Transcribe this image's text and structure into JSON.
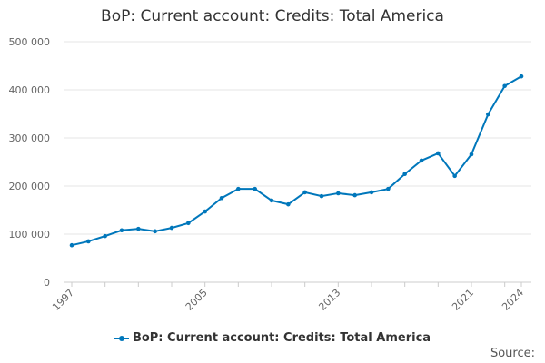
{
  "chart_data": {
    "type": "line",
    "title": "BoP: Current account: Credits: Total America",
    "xlabel": "",
    "ylabel": "",
    "ylim": [
      0,
      500000
    ],
    "yticks": [
      0,
      100000,
      200000,
      300000,
      400000,
      500000
    ],
    "ytick_labels": [
      "0",
      "100 000",
      "200 000",
      "300 000",
      "400 000",
      "500 000"
    ],
    "xtick_labels": [
      "1997",
      "2005",
      "2013",
      "2021",
      "2024"
    ],
    "grid": true,
    "legend_position": "bottom",
    "series": [
      {
        "name": "BoP: Current account: Credits: Total America",
        "color": "#0077bb",
        "x": [
          1997,
          1998,
          1999,
          2000,
          2001,
          2002,
          2003,
          2004,
          2005,
          2006,
          2007,
          2008,
          2009,
          2010,
          2011,
          2012,
          2013,
          2014,
          2015,
          2016,
          2017,
          2018,
          2019,
          2020,
          2021,
          2022,
          2023,
          2024
        ],
        "values": [
          77000,
          85000,
          96000,
          108000,
          111000,
          106000,
          113000,
          123000,
          147000,
          175000,
          194000,
          194000,
          170000,
          162000,
          187000,
          179000,
          185000,
          181000,
          187000,
          194000,
          225000,
          253000,
          268000,
          221000,
          266000,
          349000,
          408000,
          428000
        ]
      }
    ]
  },
  "source_label": "Source:"
}
